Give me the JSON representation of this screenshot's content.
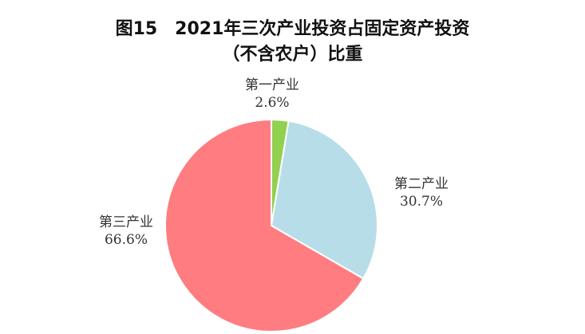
{
  "chart_data": {
    "type": "pie",
    "title": "图15　2021年三次产业投资占固定资产投资",
    "subtitle": "（不含农户）比重",
    "slices": [
      {
        "label": "第一产业",
        "value": 2.6,
        "display": "2.6%",
        "color": "#92d050"
      },
      {
        "label": "第二产业",
        "value": 30.7,
        "display": "30.7%",
        "color": "#b7dde8"
      },
      {
        "label": "第三产业",
        "value": 66.6,
        "display": "66.6%",
        "color": "#ff7c80"
      }
    ],
    "legend": "none",
    "data_labels": "outside"
  }
}
